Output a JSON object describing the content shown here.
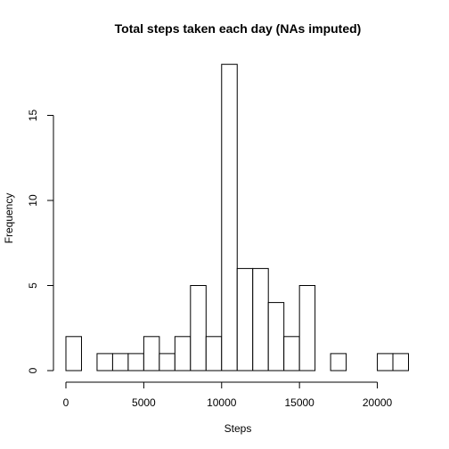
{
  "chart_data": {
    "type": "bar",
    "title": "Total steps taken each day (NAs imputed)",
    "xlabel": "Steps",
    "ylabel": "Frequency",
    "bin_width": 1000,
    "bins_start": [
      0,
      1000,
      2000,
      3000,
      4000,
      5000,
      6000,
      7000,
      8000,
      9000,
      10000,
      11000,
      12000,
      13000,
      14000,
      15000,
      16000,
      17000,
      18000,
      19000,
      20000,
      21000
    ],
    "values": [
      2,
      0,
      1,
      1,
      1,
      2,
      1,
      2,
      5,
      2,
      18,
      6,
      6,
      4,
      2,
      5,
      0,
      1,
      0,
      0,
      1,
      1
    ],
    "xlim": [
      0,
      22000
    ],
    "ylim": [
      0,
      18
    ],
    "x_ticks": [
      0,
      5000,
      10000,
      15000,
      20000
    ],
    "x_tick_labels": [
      "0",
      "5000",
      "10000",
      "15000",
      "20000"
    ],
    "y_ticks": [
      0,
      5,
      10,
      15
    ],
    "y_tick_labels": [
      "0",
      "5",
      "10",
      "15"
    ],
    "grid": false,
    "legend": "none",
    "bar_fill": "#ffffff",
    "bar_stroke": "#000000"
  }
}
